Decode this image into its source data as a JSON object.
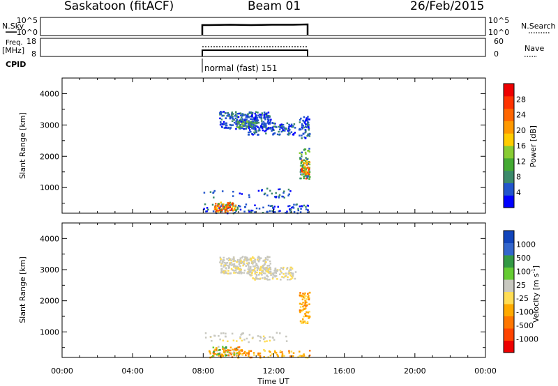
{
  "header": {
    "station": "Saskatoon (fitACF)",
    "beam": "Beam 01",
    "date": "26/Feb/2015"
  },
  "strips": {
    "nsky_label": "N.Sky",
    "nsky_ticks": [
      "10^5",
      "10^0"
    ],
    "nsearch_label": "N.Search",
    "freq_label": "Freq.",
    "freq_unit": "[MHz]",
    "freq_ticks": [
      "18",
      "8"
    ],
    "nave_label": "Nave",
    "nave_ticks": [
      "60",
      "0"
    ],
    "cpid_label": "CPID",
    "cpid_value": "normal (fast) 151"
  },
  "colors": {
    "power_scale": [
      "#0000ff",
      "#2255cc",
      "#3c8a6a",
      "#44aa33",
      "#88cc33",
      "#ffcc00",
      "#ff9900",
      "#ff6600",
      "#ff3300",
      "#ee0000"
    ],
    "velocity_scale": [
      "#ee0000",
      "#ff4400",
      "#ff7700",
      "#ffaa00",
      "#ffdd55",
      "#c8c8c0",
      "#66cc33",
      "#339944",
      "#3366cc",
      "#1144bb"
    ]
  },
  "chart_data": [
    {
      "type": "heatmap",
      "title": "",
      "xlabel": "",
      "ylabel": "Slant Range [km]",
      "xlim": [
        "00:00",
        "00:00"
      ],
      "ylim": [
        180,
        4500
      ],
      "yticks": [
        "1000",
        "2000",
        "3000",
        "4000"
      ],
      "colorbar_label": "Power [dB]",
      "colorbar_ticks": [
        "4",
        "8",
        "12",
        "16",
        "20",
        "24",
        "28"
      ],
      "data_coverage_ut": [
        "08:00",
        "14:00"
      ]
    },
    {
      "type": "heatmap",
      "title": "",
      "xlabel": "Time UT",
      "ylabel": "Slant Range [km]",
      "xticks": [
        "00:00",
        "04:00",
        "08:00",
        "12:00",
        "16:00",
        "20:00",
        "00:00"
      ],
      "ylim": [
        180,
        4500
      ],
      "yticks": [
        "1000",
        "2000",
        "3000",
        "4000"
      ],
      "colorbar_label": "Velocity [m s",
      "colorbar_label_exp": "-1",
      "colorbar_label_end": "]",
      "colorbar_ticks": [
        "1000",
        "500",
        "100",
        "25",
        "-25",
        "-100",
        "-500",
        "-1000"
      ],
      "data_coverage_ut": [
        "08:00",
        "14:00"
      ]
    }
  ]
}
